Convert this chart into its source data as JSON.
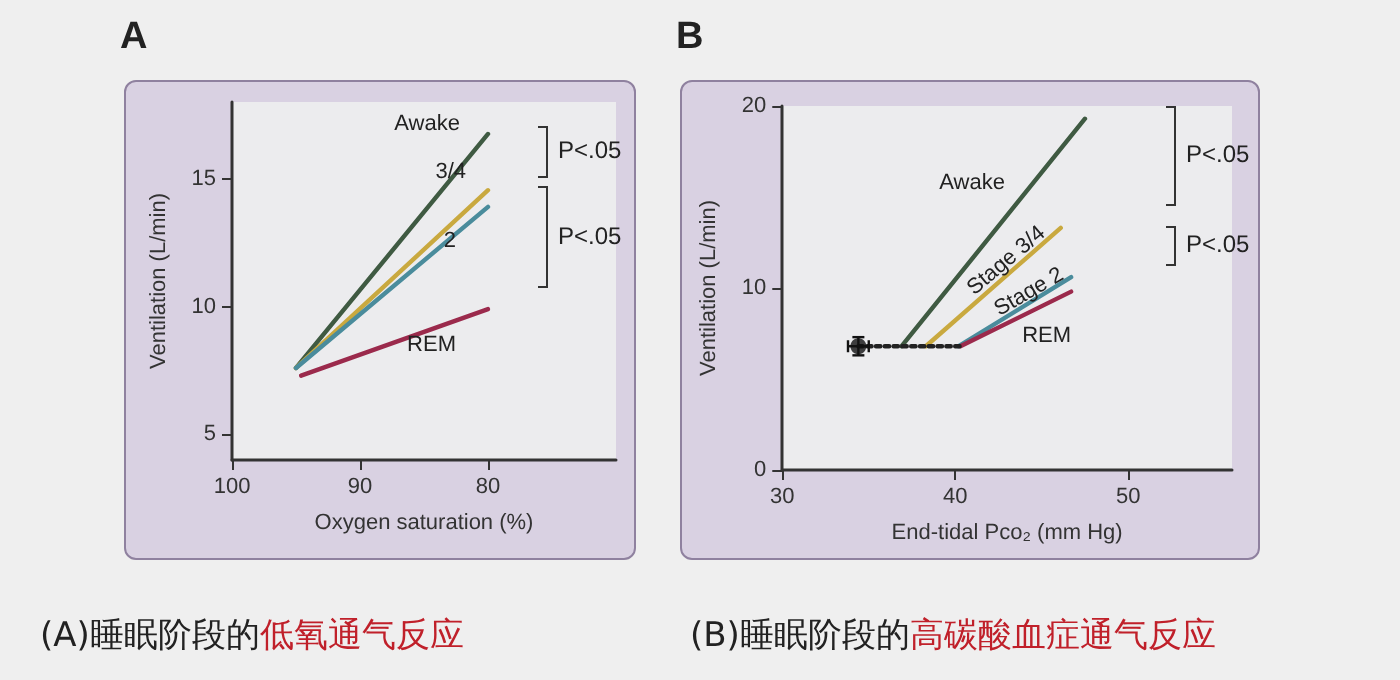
{
  "chart_data": [
    {
      "type": "line",
      "title": "A",
      "xlabel": "Oxygen saturation (%)",
      "ylabel": "Ventilation (L/min)",
      "xlim": [
        100,
        70
      ],
      "xticks": [
        100,
        90,
        80
      ],
      "ylim": [
        4,
        18
      ],
      "yticks": [
        5,
        10,
        15
      ],
      "grid": false,
      "legend": false,
      "marker": "none",
      "line_style": "solid",
      "series": [
        {
          "name": "Awake",
          "color": "#3f5a42",
          "x": [
            95,
            80
          ],
          "values": [
            7.6,
            16.75
          ]
        },
        {
          "name": "3/4",
          "color": "#c9a93f",
          "x": [
            95,
            80
          ],
          "values": [
            7.6,
            14.55
          ]
        },
        {
          "name": "2",
          "color": "#4a8c9c",
          "x": [
            95,
            80
          ],
          "values": [
            7.6,
            13.9
          ]
        },
        {
          "name": "REM",
          "color": "#9b2a4c",
          "x": [
            94.6,
            80
          ],
          "values": [
            7.3,
            9.9
          ]
        }
      ],
      "annotations": [
        "P<.05",
        "P<.05",
        "(A)睡眠阶段的",
        "低氧通气反应"
      ]
    },
    {
      "type": "line",
      "title": "B",
      "xlabel": "End-tidal Pco₂ (mm Hg)",
      "ylabel": "Ventilation (L/min)",
      "xlim": [
        30,
        56
      ],
      "xticks": [
        30,
        40,
        50
      ],
      "ylim": [
        0,
        20
      ],
      "yticks": [
        0,
        10,
        20
      ],
      "grid": false,
      "legend": false,
      "marker": "none",
      "line_style": "solid",
      "series": [
        {
          "name": "Awake",
          "color": "#3f5a42",
          "x": [
            36.9,
            47.5
          ],
          "values": [
            6.8,
            19.3
          ]
        },
        {
          "name": "Stage 3/4",
          "color": "#c9a93f",
          "x": [
            38.3,
            46.1
          ],
          "values": [
            6.8,
            13.3
          ]
        },
        {
          "name": "Stage 2",
          "color": "#4a8c9c",
          "x": [
            40.2,
            46.7
          ],
          "values": [
            6.8,
            10.6
          ]
        },
        {
          "name": "REM",
          "color": "#9b2a4c",
          "x": [
            40.3,
            46.7
          ],
          "values": [
            6.8,
            9.8
          ]
        },
        {
          "type": "line",
          "line_style": "dotted",
          "color": "#222222",
          "x": [
            34.4,
            40.3
          ],
          "values": [
            6.8,
            6.8
          ]
        },
        {
          "type": "scatter",
          "marker": "circle",
          "color": "#111111",
          "x": [
            34.4
          ],
          "values": [
            6.8
          ],
          "errors": [
            0.5
          ],
          "xerrors": [
            0.6
          ]
        }
      ],
      "annotations": [
        "P<.05",
        "P<.05",
        "(B)睡眠阶段的",
        "高碳酸血症通气反应"
      ]
    }
  ]
}
